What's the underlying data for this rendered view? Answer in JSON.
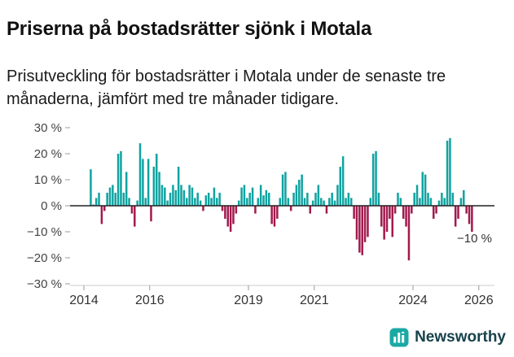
{
  "header": {
    "title": "Priserna på bostadsrätter sjönk i Motala",
    "subtitle": "Prisutveckling för bostadsrätter i Motala under de senaste tre månaderna, jämfört med tre månader tidigare."
  },
  "chart_data": {
    "type": "bar",
    "title": "Prisutveckling för bostadsrätter i Motala",
    "unit": "%",
    "grid": false,
    "legend_position": "none",
    "ylim": [
      -30,
      30
    ],
    "xlim": [
      2013.9,
      2026.4
    ],
    "yticks": [
      {
        "value": 30,
        "label": "30 %"
      },
      {
        "value": 20,
        "label": "20 %"
      },
      {
        "value": 10,
        "label": "10 %"
      },
      {
        "value": 0,
        "label": "0 %"
      },
      {
        "value": -10,
        "label": "−10 %"
      },
      {
        "value": -20,
        "label": "−20 %"
      },
      {
        "value": -30,
        "label": "−30 %"
      }
    ],
    "xticks": [
      {
        "value": 2014,
        "label": "2014"
      },
      {
        "value": 2016,
        "label": "2016"
      },
      {
        "value": 2019,
        "label": "2019"
      },
      {
        "value": 2021,
        "label": "2021"
      },
      {
        "value": 2024,
        "label": "2024"
      },
      {
        "value": 2026,
        "label": "2026"
      }
    ],
    "annotation": {
      "text": "−10 %",
      "value": -10
    },
    "colors": {
      "positive": "#0fa3a1",
      "negative": "#a21a4d",
      "zero_line": "#222222",
      "axis_line": "#cccccc",
      "tick_mark": "#999999"
    },
    "months": [
      "2014-03",
      "2014-04",
      "2014-05",
      "2014-06",
      "2014-07",
      "2014-08",
      "2014-09",
      "2014-10",
      "2014-11",
      "2014-12",
      "2015-01",
      "2015-02",
      "2015-03",
      "2015-04",
      "2015-05",
      "2015-06",
      "2015-07",
      "2015-08",
      "2015-09",
      "2015-10",
      "2015-11",
      "2015-12",
      "2016-01",
      "2016-02",
      "2016-03",
      "2016-04",
      "2016-05",
      "2016-06",
      "2016-07",
      "2016-08",
      "2016-09",
      "2016-10",
      "2016-11",
      "2016-12",
      "2017-01",
      "2017-02",
      "2017-03",
      "2017-04",
      "2017-05",
      "2017-06",
      "2017-07",
      "2017-08",
      "2017-09",
      "2017-10",
      "2017-11",
      "2017-12",
      "2018-01",
      "2018-02",
      "2018-03",
      "2018-04",
      "2018-05",
      "2018-06",
      "2018-07",
      "2018-08",
      "2018-09",
      "2018-10",
      "2018-11",
      "2018-12",
      "2019-01",
      "2019-02",
      "2019-03",
      "2019-04",
      "2019-05",
      "2019-06",
      "2019-07",
      "2019-08",
      "2019-09",
      "2019-10",
      "2019-11",
      "2019-12",
      "2020-01",
      "2020-02",
      "2020-03",
      "2020-04",
      "2020-05",
      "2020-06",
      "2020-07",
      "2020-08",
      "2020-09",
      "2020-10",
      "2020-11",
      "2020-12",
      "2021-01",
      "2021-02",
      "2021-03",
      "2021-04",
      "2021-05",
      "2021-06",
      "2021-07",
      "2021-08",
      "2021-09",
      "2021-10",
      "2021-11",
      "2021-12",
      "2022-01",
      "2022-02",
      "2022-03",
      "2022-04",
      "2022-05",
      "2022-06",
      "2022-07",
      "2022-08",
      "2022-09",
      "2022-10",
      "2022-11",
      "2022-12",
      "2023-01",
      "2023-02",
      "2023-03",
      "2023-04",
      "2023-05",
      "2023-06",
      "2023-07",
      "2023-08",
      "2023-09",
      "2023-10",
      "2023-11",
      "2023-12",
      "2024-01",
      "2024-02",
      "2024-03",
      "2024-04",
      "2024-05",
      "2024-06",
      "2024-07",
      "2024-08",
      "2024-09",
      "2024-10",
      "2024-11",
      "2024-12",
      "2025-01",
      "2025-02",
      "2025-03",
      "2025-04",
      "2025-05",
      "2025-06",
      "2025-07",
      "2025-08",
      "2025-09",
      "2025-10"
    ],
    "values": [
      14,
      0.5,
      3,
      5,
      -7,
      -2,
      5,
      7,
      8,
      5,
      20,
      21,
      5,
      13,
      3,
      -3,
      -8,
      2,
      24,
      18,
      3,
      18,
      -6,
      15,
      20,
      13,
      8,
      7,
      2,
      5,
      8,
      6,
      15,
      8,
      6,
      3,
      8,
      7,
      3,
      5,
      2,
      -2,
      4,
      5,
      3,
      7,
      3,
      5,
      -2,
      -5,
      -8,
      -10,
      -7,
      -3,
      2,
      7,
      8,
      3,
      5,
      7,
      -3,
      3,
      8,
      4,
      6,
      5,
      -7,
      -8,
      -5,
      3,
      12,
      13,
      3,
      -2,
      5,
      8,
      10,
      12,
      3,
      5,
      -3,
      2,
      5,
      8,
      3,
      2,
      -3,
      3,
      5,
      2,
      8,
      15,
      19,
      3,
      5,
      3,
      -5,
      -13,
      -18,
      -19,
      -14,
      -12,
      3,
      20,
      21,
      5,
      -8,
      -13,
      -10,
      -5,
      -12,
      -3,
      5,
      3,
      -5,
      -8,
      -21,
      -3,
      5,
      8,
      3,
      13,
      12,
      5,
      3,
      -5,
      -3,
      2,
      5,
      3,
      25,
      26,
      5,
      -8,
      -5,
      3,
      6,
      -3,
      -7,
      -10
    ]
  },
  "footer": {
    "brand": "Newsworthy",
    "brand_color": "#1ba9a5",
    "icon": "newsworthy-bar-chart-logo"
  }
}
